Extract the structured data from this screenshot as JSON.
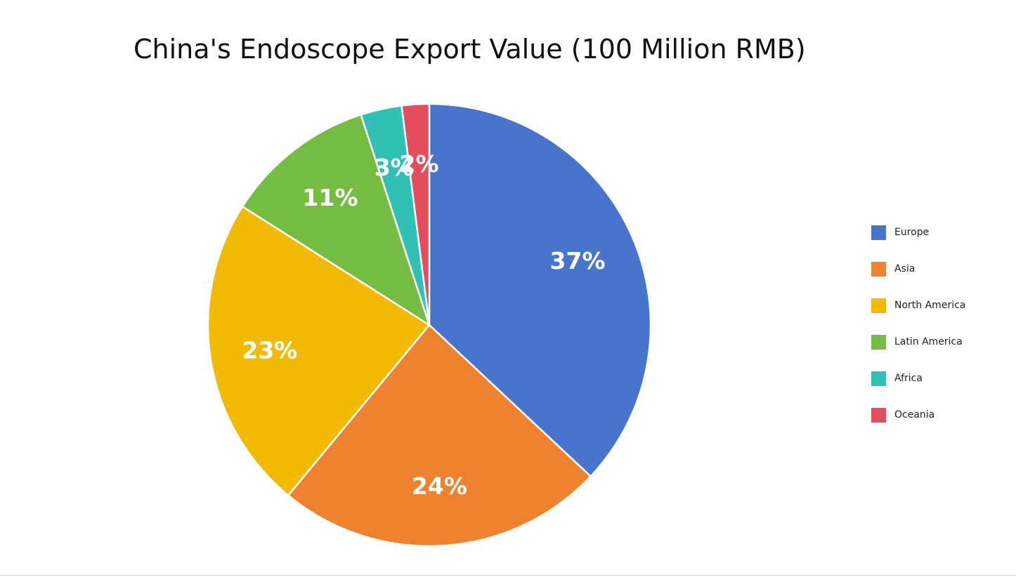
{
  "chart_data": {
    "type": "pie",
    "title": "China's Endoscope Export Value (100 Million RMB)",
    "labels": [
      "Europe",
      "Asia",
      "North America",
      "Latin America",
      "Africa",
      "Oceania"
    ],
    "values": [
      37,
      24,
      23,
      11,
      3,
      2
    ],
    "value_labels": [
      "37%",
      "24%",
      "23%",
      "11%",
      "3%",
      "2%"
    ],
    "colors": [
      "#4874CB",
      "#EE822F",
      "#F2BA02",
      "#75BD42",
      "#30C0B4",
      "#E54C5E"
    ],
    "start_angle": "12 o'clock",
    "direction": "clockwise",
    "legend_position": "right"
  }
}
